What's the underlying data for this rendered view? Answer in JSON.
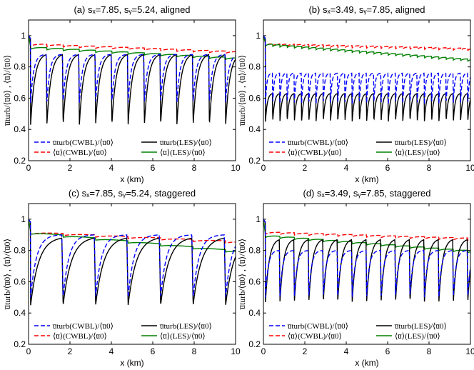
{
  "colors": {
    "cwbl_turb": "#0000ff",
    "cwbl_mean": "#ff0000",
    "les_turb": "#000000",
    "les_mean": "#008000"
  },
  "ylabel": "u̅turb/⟨u̅0⟩ , ⟨u̅⟩/⟨u̅0⟩",
  "legend_entries": [
    {
      "key": "cwbl_turb",
      "label": "u̅turb(CWBL)/⟨u̅0⟩",
      "style": "dashed"
    },
    {
      "key": "les_turb",
      "label": "u̅turb(LES)/⟨u̅0⟩",
      "style": "solid"
    },
    {
      "key": "cwbl_mean",
      "label": "⟨u̅⟩(CWBL)/⟨u̅0⟩",
      "style": "dashed"
    },
    {
      "key": "les_mean",
      "label": "⟨u̅⟩(LES)/⟨u̅0⟩",
      "style": "solid"
    }
  ],
  "chart_data": [
    {
      "type": "line",
      "title": "(a)  sₓ=7.85, sᵧ=5.24, aligned",
      "xlabel": "x (km)",
      "ylabel": "u̅turb/⟨u̅0⟩ , ⟨u̅⟩/⟨u̅0⟩",
      "xlim": [
        0,
        10
      ],
      "ylim": [
        0.2,
        1.1
      ],
      "xticks": [
        0,
        2,
        4,
        6,
        8,
        10
      ],
      "yticks": [
        0.2,
        0.4,
        0.6,
        0.8,
        1
      ],
      "legend": "bottom",
      "rows": 13,
      "row_spacing_km": 0.785,
      "first_row_km": 0.1,
      "series": [
        {
          "name": "u̅turb(CWBL)/⟨u̅0⟩",
          "key": "cwbl_turb",
          "style": "dashed",
          "trough": 0.57,
          "peak": 0.88
        },
        {
          "name": "⟨u̅⟩(CWBL)/⟨u̅0⟩",
          "key": "cwbl_mean",
          "style": "dashed",
          "start": 0.95,
          "end": 0.9
        },
        {
          "name": "u̅turb(LES)/⟨u̅0⟩",
          "key": "les_turb",
          "style": "solid",
          "trough": 0.43,
          "peak": 0.88
        },
        {
          "name": "⟨u̅⟩(LES)/⟨u̅0⟩",
          "key": "les_mean",
          "style": "solid",
          "start": 0.93,
          "end": 0.86
        }
      ]
    },
    {
      "type": "line",
      "title": "(b)  sₓ=3.49, sᵧ=7.85, aligned",
      "xlabel": "x (km)",
      "ylabel": "",
      "xlim": [
        0,
        10
      ],
      "ylim": [
        0.2,
        1.1
      ],
      "xticks": [
        0,
        2,
        4,
        6,
        8,
        10
      ],
      "yticks": [
        0.2,
        0.4,
        0.6,
        0.8,
        1
      ],
      "legend": "bottom",
      "rows": 27,
      "row_spacing_km": 0.349,
      "first_row_km": 0.1,
      "series": [
        {
          "name": "u̅turb(CWBL)/⟨u̅0⟩",
          "key": "cwbl_turb",
          "style": "dashed",
          "trough": 0.56,
          "peak": 0.76
        },
        {
          "name": "⟨u̅⟩(CWBL)/⟨u̅0⟩",
          "key": "cwbl_mean",
          "style": "dashed",
          "start": 0.95,
          "end": 0.92
        },
        {
          "name": "u̅turb(LES)/⟨u̅0⟩",
          "key": "les_turb",
          "style": "solid",
          "trough": 0.45,
          "peak": 0.63
        },
        {
          "name": "⟨u̅⟩(LES)/⟨u̅0⟩",
          "key": "les_mean",
          "style": "solid",
          "start": 0.95,
          "end": 0.85
        }
      ]
    },
    {
      "type": "line",
      "title": "(c)  sₓ=7.85, sᵧ=5.24, staggered",
      "xlabel": "x (km)",
      "ylabel": "u̅turb/⟨u̅0⟩ , ⟨u̅⟩/⟨u̅0⟩",
      "xlim": [
        0,
        10
      ],
      "ylim": [
        0.2,
        1.1
      ],
      "xticks": [
        0,
        2,
        4,
        6,
        8,
        10
      ],
      "yticks": [
        0.2,
        0.4,
        0.6,
        0.8,
        1
      ],
      "legend": "bottom",
      "rows": 7,
      "row_spacing_km": 1.57,
      "first_row_km": 0.1,
      "series": [
        {
          "name": "u̅turb(CWBL)/⟨u̅0⟩",
          "key": "cwbl_turb",
          "style": "dashed",
          "trough": 0.5,
          "peak": 0.9
        },
        {
          "name": "⟨u̅⟩(CWBL)/⟨u̅0⟩",
          "key": "cwbl_mean",
          "style": "dashed",
          "start": 0.92,
          "end": 0.86
        },
        {
          "name": "u̅turb(LES)/⟨u̅0⟩",
          "key": "les_turb",
          "style": "solid",
          "trough": 0.45,
          "peak": 0.88
        },
        {
          "name": "⟨u̅⟩(LES)/⟨u̅0⟩",
          "key": "les_mean",
          "style": "solid",
          "start": 0.92,
          "end": 0.8
        }
      ]
    },
    {
      "type": "line",
      "title": "(d)  sₓ=3.49, sᵧ=7.85, staggered",
      "xlabel": "x (km)",
      "ylabel": "",
      "xlim": [
        0,
        10
      ],
      "ylim": [
        0.2,
        1.1
      ],
      "xticks": [
        0,
        2,
        4,
        6,
        8,
        10
      ],
      "yticks": [
        0.2,
        0.4,
        0.6,
        0.8,
        1
      ],
      "legend": "bottom",
      "rows": 14,
      "row_spacing_km": 0.698,
      "first_row_km": 0.1,
      "series": [
        {
          "name": "u̅turb(CWBL)/⟨u̅0⟩",
          "key": "cwbl_turb",
          "style": "dashed",
          "trough": 0.5,
          "peak": 0.8
        },
        {
          "name": "⟨u̅⟩(CWBL)/⟨u̅0⟩",
          "key": "cwbl_mean",
          "style": "dashed",
          "start": 0.92,
          "end": 0.88
        },
        {
          "name": "u̅turb(LES)/⟨u̅0⟩",
          "key": "les_turb",
          "style": "solid",
          "trough": 0.47,
          "peak": 0.87
        },
        {
          "name": "⟨u̅⟩(LES)/⟨u̅0⟩",
          "key": "les_mean",
          "style": "solid",
          "start": 0.9,
          "end": 0.8
        }
      ]
    }
  ]
}
